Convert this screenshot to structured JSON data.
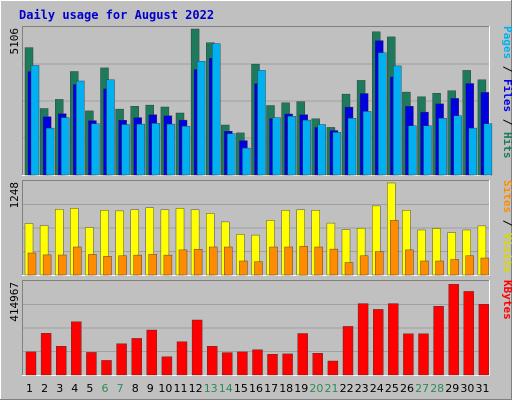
{
  "colors": {
    "page_bg": "#c0c0c0",
    "panel_bg": "#c0c0c0",
    "grid": "#a0a0a0",
    "title": "#0000cc",
    "hits": "#1e7a5c",
    "files": "#0000e0",
    "pages": "#00b0f0",
    "visits": "#ffff00",
    "sites": "#ff8c00",
    "kbytes": "#ff0000",
    "day_weekday": "#000000",
    "day_weekend": "#2e8b57",
    "legend_hits": "#1e7a5c",
    "legend_files": "#0000e0",
    "legend_pages": "#00b0f0",
    "legend_visits": "#d8d800",
    "legend_sites": "#ff8c00",
    "legend_kbytes": "#ff0000"
  },
  "chart_data": {
    "type": "bar",
    "title": "Daily usage for August 2022",
    "categories": [
      "1",
      "2",
      "3",
      "4",
      "5",
      "6",
      "7",
      "8",
      "9",
      "10",
      "11",
      "12",
      "13",
      "14",
      "15",
      "16",
      "17",
      "18",
      "19",
      "20",
      "21",
      "22",
      "23",
      "24",
      "25",
      "26",
      "27",
      "28",
      "29",
      "30",
      "31"
    ],
    "weekend_days": [
      "6",
      "7",
      "13",
      "14",
      "20",
      "21",
      "27",
      "28"
    ],
    "panels": [
      {
        "name": "requests",
        "ymax_label": "5106",
        "ylim": [
          0,
          5106
        ],
        "legend": [
          {
            "text": "Pages",
            "color_key": "legend_pages"
          },
          {
            "text": " / ",
            "color_key": "day_weekday"
          },
          {
            "text": "Files",
            "color_key": "legend_files"
          },
          {
            "text": " / ",
            "color_key": "day_weekday"
          },
          {
            "text": "Hits",
            "color_key": "legend_hits"
          }
        ],
        "series": [
          {
            "name": "Hits",
            "color_key": "hits",
            "values": [
              4454,
              2327,
              2644,
              3621,
              2242,
              3744,
              2306,
              2401,
              2445,
              2377,
              2169,
              5106,
              4626,
              1747,
              1474,
              3879,
              2432,
              2526,
              2564,
              1965,
              1664,
              2829,
              3307,
              5008,
              4830,
              2898,
              2734,
              2857,
              2948,
              3659,
              3331
            ]
          },
          {
            "name": "Files",
            "color_key": "files",
            "values": [
              3621,
              2038,
              2145,
              3164,
              1901,
              3016,
              1917,
              2006,
              2110,
              2070,
              1920,
              3690,
              4086,
              1532,
              1202,
              3197,
              1977,
              2134,
              2110,
              1663,
              1556,
              2375,
              2851,
              4701,
              3432,
              2402,
              2200,
              2490,
              2680,
              3200,
              2890
            ]
          },
          {
            "name": "Pages",
            "color_key": "pages",
            "values": [
              3830,
              1640,
              2006,
              3289,
              1793,
              3331,
              1766,
              1779,
              1803,
              1779,
              1707,
              3980,
              4597,
              1449,
              940,
              3659,
              2006,
              2057,
              1919,
              1765,
              1490,
              1984,
              2225,
              4276,
              3815,
              1720,
              1720,
              1987,
              2074,
              1640,
              1793
            ]
          }
        ]
      },
      {
        "name": "visits",
        "ymax_label": "1248",
        "ylim": [
          0,
          1248
        ],
        "legend": [
          {
            "text": "Sites",
            "color_key": "legend_sites"
          },
          {
            "text": " / ",
            "color_key": "day_weekday"
          },
          {
            "text": "Visits",
            "color_key": "legend_visits"
          }
        ],
        "series": [
          {
            "name": "Visits",
            "color_key": "visits",
            "values": [
              698,
              671,
              890,
              904,
              644,
              877,
              870,
              884,
              911,
              884,
              904,
              884,
              835,
              720,
              551,
              541,
              740,
              877,
              884,
              877,
              704,
              617,
              635,
              938,
              1248,
              877,
              610,
              631,
              575,
              610,
              666
            ]
          },
          {
            "name": "Sites",
            "color_key": "sites",
            "values": [
              298,
              272,
              271,
              380,
              280,
              254,
              260,
              270,
              280,
              270,
              340,
              350,
              380,
              380,
              190,
              180,
              380,
              380,
              390,
              380,
              352,
              170,
              260,
              317,
              740,
              340,
              190,
              190,
              210,
              260,
              230
            ]
          }
        ]
      },
      {
        "name": "kbytes",
        "ymax_label": "414967",
        "ylim": [
          0,
          414967
        ],
        "legend": [
          {
            "text": "KBytes",
            "color_key": "legend_kbytes"
          }
        ],
        "series": [
          {
            "name": "KBytes",
            "color_key": "kbytes",
            "values": [
              104000,
              188000,
              130000,
              240000,
              102000,
              66000,
              141000,
              165000,
              203000,
              82000,
              150000,
              248000,
              130000,
              101000,
              104000,
              114000,
              94000,
              95000,
              187000,
              98000,
              63000,
              219000,
              322000,
              296000,
              322000,
              186000,
              186000,
              310000,
              409000,
              377000,
              319000
            ]
          }
        ]
      }
    ]
  }
}
